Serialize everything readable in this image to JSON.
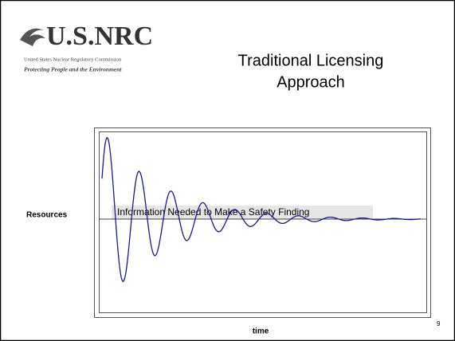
{
  "header": {
    "logo": {
      "name": "U.S.NRC",
      "line1": "United States Nuclear Regulatory Commission",
      "line2": "Protecting People and the Environment"
    },
    "title": [
      "Traditional Licensing",
      "Approach"
    ]
  },
  "figure": {
    "y_label": "Resources",
    "x_label": "time",
    "annotation": "Information Needed to Make a Safety Finding"
  },
  "page_number": "9"
}
